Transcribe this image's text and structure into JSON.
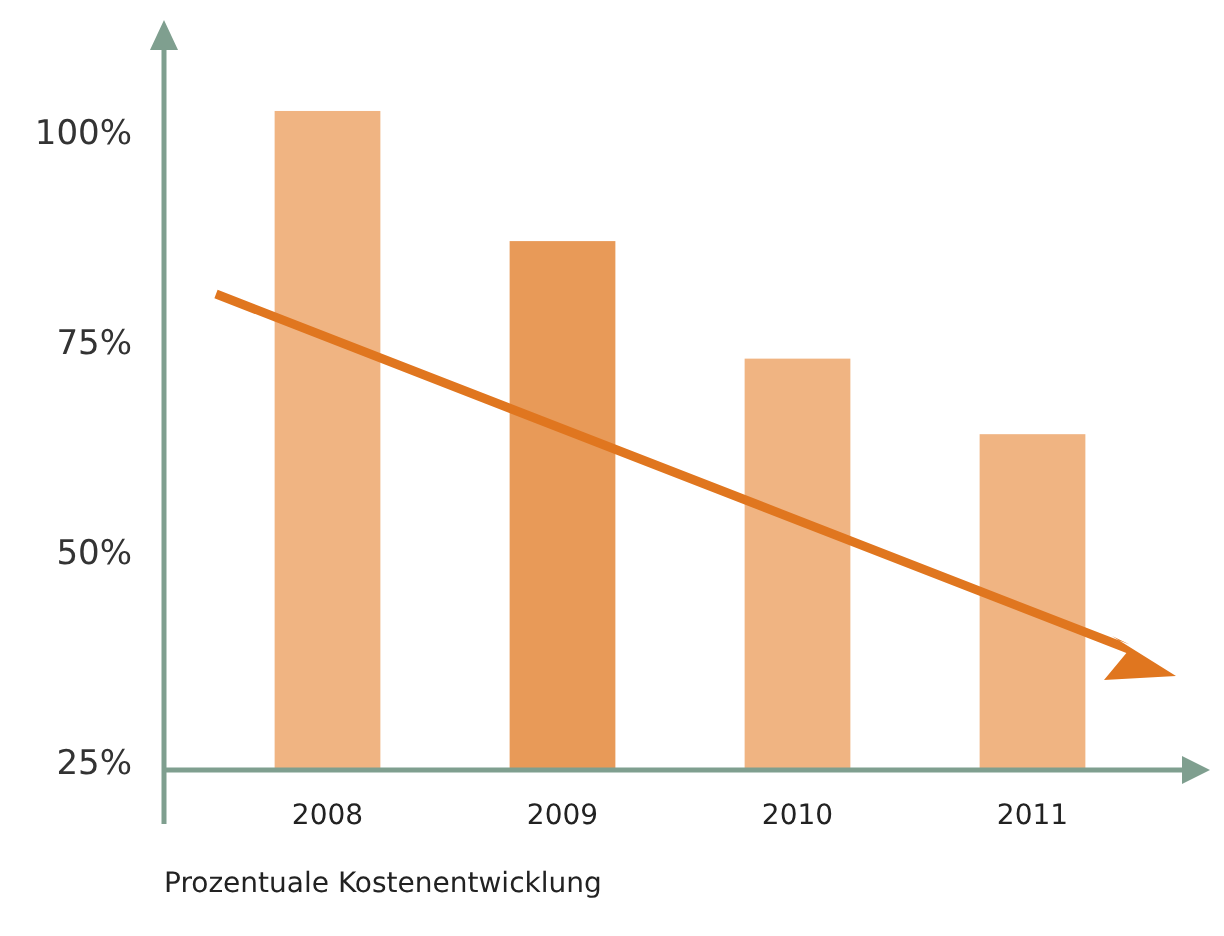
{
  "chart_data": {
    "type": "bar",
    "xlabel": "Prozentuale Kostenentwicklung",
    "categories": [
      "2008",
      "2009",
      "2010",
      "2011"
    ],
    "values": [
      102.5,
      87,
      73,
      64
    ],
    "colors": [
      "#f0b482",
      "#e89a58",
      "#f0b482",
      "#f0b482"
    ],
    "ylim": [
      24,
      110
    ],
    "yticks": [
      {
        "value": 25,
        "label": "25%"
      },
      {
        "value": 50,
        "label": "50%"
      },
      {
        "value": 75,
        "label": "75%"
      },
      {
        "value": 100,
        "label": "100%"
      }
    ],
    "grid": false
  }
}
